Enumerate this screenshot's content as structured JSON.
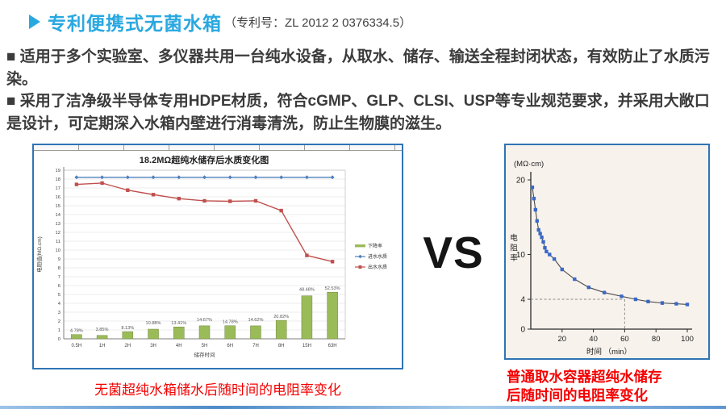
{
  "header": {
    "title": "专利便携式无菌水箱",
    "patent_suffix": "（专利号：ZL 2012 2 0376334.5）"
  },
  "bullets": [
    "■ 适用于多个实验室、多仪器共用一台纯水设备，从取水、储存、输送全程封闭状态，有效防止了水质污染。",
    "■ 采用了洁净级半导体专用HDPE材质，符合cGMP、GLP、CLSI、USP等专业规范要求，并采用大敞口是设计，可定期深入水箱内壁进行消毒清洗，防止生物膜的滋生。"
  ],
  "vs_label": "VS",
  "captions": {
    "left": "无菌超纯水箱储水后随时间的电阻率变化",
    "right_line1": "普通取水容器超纯水储存",
    "right_line2": "后随时间的电阻率变化"
  },
  "colors": {
    "accent_blue": "#29A8E0",
    "caption_red": "#F40000",
    "panel_border_blue": "#2E74B5",
    "bar_green": "#9BBB59",
    "inlet_blue": "#4F81BD",
    "outlet_red": "#C0504D",
    "marker_blue": "#3A68C8"
  },
  "chart_data": [
    {
      "id": "sterile-tank-chart",
      "type": "bar",
      "subtype": "combo-line-bar",
      "title": "18.2MΩ超纯水储存后水质变化图",
      "xlabel": "储存时间",
      "ylabel": "电阻值(MΩ.cm)",
      "ylim": [
        0,
        19
      ],
      "yticks_every": 1,
      "grid": true,
      "legend_position": "right",
      "categories": [
        "0.5H",
        "1H",
        "2H",
        "3H",
        "4H",
        "5H",
        "6H",
        "7H",
        "8H",
        "15H",
        "63H"
      ],
      "series": [
        {
          "name": "下降率",
          "type": "bar",
          "color": "#9BBB59",
          "unit": "%",
          "values": [
            4.78,
            3.85,
            8.13,
            10.88,
            13.41,
            14.67,
            14.78,
            14.62,
            20.82,
            48.48,
            52.53
          ],
          "labels": [
            "4.78%",
            "3.85%",
            "8.13%",
            "10.88%",
            "13.41%",
            "14.67%",
            "14.78%",
            "14.62%",
            "20.82%",
            "48.48%",
            "52.53%"
          ]
        },
        {
          "name": "进水水质",
          "type": "line",
          "marker": "diamond",
          "color": "#4F81BD",
          "values": [
            18.2,
            18.2,
            18.2,
            18.2,
            18.2,
            18.2,
            18.2,
            18.2,
            18.2,
            18.2,
            18.2
          ]
        },
        {
          "name": "出水水质",
          "type": "line",
          "marker": "square",
          "color": "#C0504D",
          "values": [
            17.4,
            17.55,
            16.75,
            16.25,
            15.8,
            15.55,
            15.5,
            15.55,
            14.45,
            9.4,
            8.7
          ]
        }
      ]
    },
    {
      "id": "ordinary-container-chart",
      "type": "line",
      "unit_label": "(MΩ·cm)",
      "ylabel": "电阻率",
      "xlabel": "时间 （min）",
      "ylim": [
        0,
        20
      ],
      "xlim": [
        0,
        100
      ],
      "yticks": [
        0,
        4,
        10,
        20
      ],
      "xticks": [
        20,
        40,
        60,
        80,
        100
      ],
      "dashed_guides": {
        "y": 4,
        "x": 60
      },
      "series": [
        {
          "name": "电阻率",
          "color": "#3A68C8",
          "marker": "square",
          "x": [
            1,
            2,
            3,
            4,
            5,
            6,
            7,
            8,
            9,
            10,
            12,
            15,
            20,
            28,
            37,
            47,
            58,
            67,
            75,
            84,
            93,
            100
          ],
          "y": [
            19,
            17.5,
            16,
            14.5,
            13.3,
            12.8,
            12.3,
            11.7,
            10.9,
            10.4,
            10,
            9.4,
            8,
            6.7,
            5.6,
            4.9,
            4.4,
            4.0,
            3.7,
            3.5,
            3.4,
            3.3
          ]
        }
      ]
    }
  ]
}
